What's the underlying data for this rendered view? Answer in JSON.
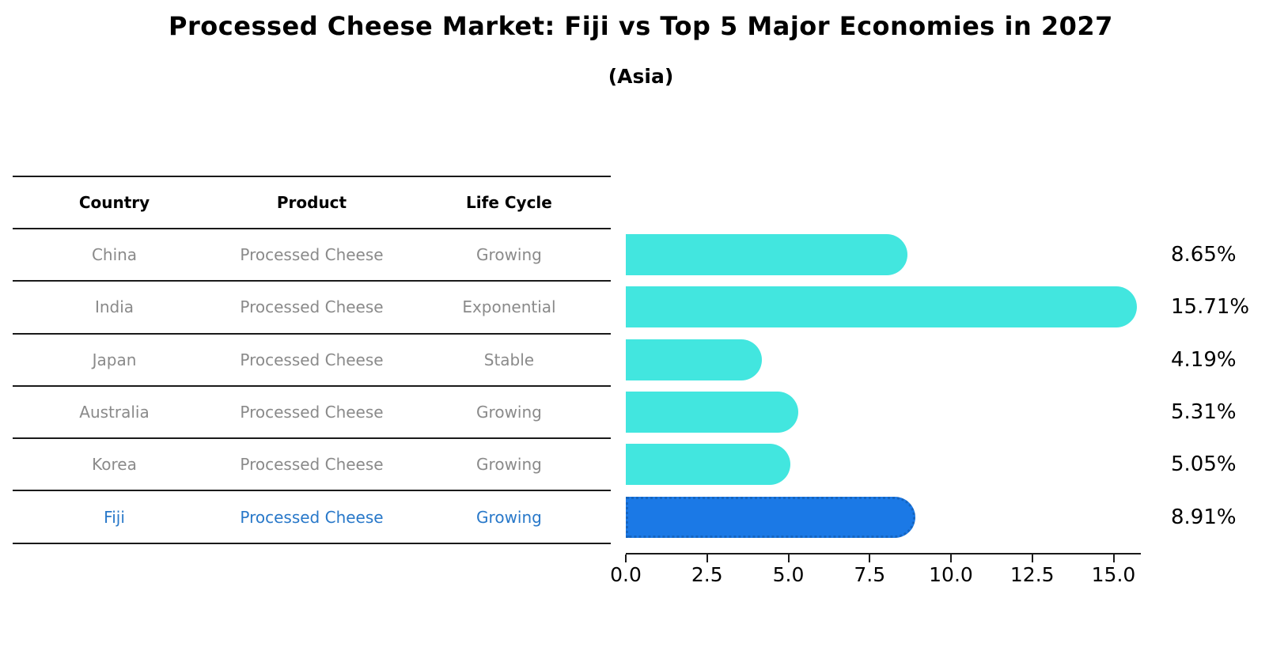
{
  "header": {
    "title": "Processed Cheese Market: Fiji vs Top 5 Major Economies in 2027",
    "subtitle": "(Asia)"
  },
  "table": {
    "headers": [
      "Country",
      "Product",
      "Life Cycle"
    ],
    "rows": [
      {
        "country": "China",
        "product": "Processed Cheese",
        "life_cycle": "Growing",
        "highlight": false
      },
      {
        "country": "India",
        "product": "Processed Cheese",
        "life_cycle": "Exponential",
        "highlight": false
      },
      {
        "country": "Japan",
        "product": "Processed Cheese",
        "life_cycle": "Stable",
        "highlight": false
      },
      {
        "country": "Australia",
        "product": "Processed Cheese",
        "life_cycle": "Growing",
        "highlight": false
      },
      {
        "country": "Korea",
        "product": "Processed Cheese",
        "life_cycle": "Growing",
        "highlight": false
      },
      {
        "country": "Fiji",
        "product": "Processed Cheese",
        "life_cycle": "Growing",
        "highlight": true
      }
    ],
    "text_color": "#8a8a8a",
    "highlight_text_color": "#2878c9",
    "line_color": "#1a1a1a"
  },
  "chart_data": {
    "type": "bar",
    "orientation": "horizontal",
    "title": "Processed Cheese Market: Fiji vs Top 5 Major Economies in 2027",
    "subtitle": "(Asia)",
    "categories": [
      "China",
      "India",
      "Japan",
      "Australia",
      "Korea",
      "Fiji"
    ],
    "values": [
      8.65,
      15.71,
      4.19,
      5.31,
      5.05,
      8.91
    ],
    "value_labels": [
      "8.65%",
      "15.71%",
      "4.19%",
      "5.31%",
      "5.05%",
      "8.91%"
    ],
    "highlight_category": "Fiji",
    "bar_color": "#42e6df",
    "highlight_bar_color": "#1b79e6",
    "highlight_border_color": "#1565c0",
    "xlim": [
      0,
      15.85
    ],
    "xtick_labels": [
      "0.0",
      "2.5",
      "5.0",
      "7.5",
      "10.0",
      "12.5",
      "15.0"
    ],
    "xtick_values": [
      0,
      2.5,
      5,
      7.5,
      10,
      12.5,
      15
    ],
    "xlabel": "",
    "ylabel": "",
    "grid": false,
    "legend": null
  }
}
